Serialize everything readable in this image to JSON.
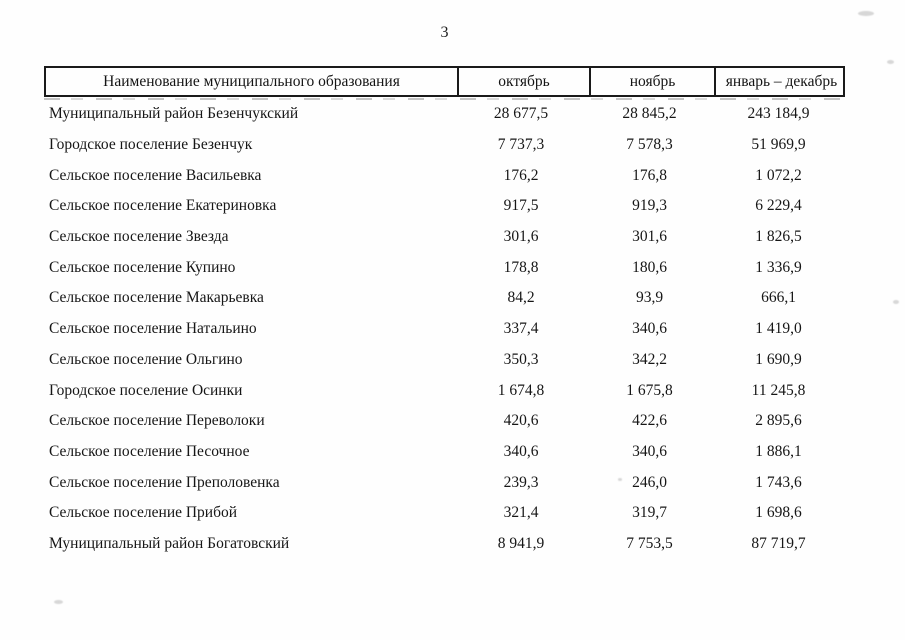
{
  "page": {
    "number": "3"
  },
  "table": {
    "headers": [
      "Наименование муниципального образования",
      "октябрь",
      "ноябрь",
      "январь – декабрь"
    ],
    "rows": [
      {
        "name": "Муниципальный район Безенчукский",
        "oct": "28 677,5",
        "nov": "28 845,2",
        "jan_dec": "243 184,9"
      },
      {
        "name": "Городское поселение Безенчук",
        "oct": "7 737,3",
        "nov": "7 578,3",
        "jan_dec": "51 969,9"
      },
      {
        "name": "Сельское поселение Васильевка",
        "oct": "176,2",
        "nov": "176,8",
        "jan_dec": "1 072,2"
      },
      {
        "name": "Сельское поселение Екатериновка",
        "oct": "917,5",
        "nov": "919,3",
        "jan_dec": "6 229,4"
      },
      {
        "name": "Сельское поселение Звезда",
        "oct": "301,6",
        "nov": "301,6",
        "jan_dec": "1 826,5"
      },
      {
        "name": "Сельское поселение Купино",
        "oct": "178,8",
        "nov": "180,6",
        "jan_dec": "1 336,9"
      },
      {
        "name": "Сельское поселение Макарьевка",
        "oct": "84,2",
        "nov": "93,9",
        "jan_dec": "666,1"
      },
      {
        "name": "Сельское поселение Натальино",
        "oct": "337,4",
        "nov": "340,6",
        "jan_dec": "1 419,0"
      },
      {
        "name": "Сельское поселение Ольгино",
        "oct": "350,3",
        "nov": "342,2",
        "jan_dec": "1 690,9"
      },
      {
        "name": "Городское поселение Осинки",
        "oct": "1 674,8",
        "nov": "1 675,8",
        "jan_dec": "11 245,8"
      },
      {
        "name": "Сельское поселение Переволоки",
        "oct": "420,6",
        "nov": "422,6",
        "jan_dec": "2 895,6"
      },
      {
        "name": "Сельское поселение Песочное",
        "oct": "340,6",
        "nov": "340,6",
        "jan_dec": "1 886,1"
      },
      {
        "name": "Сельское поселение Преполовенка",
        "oct": "239,3",
        "nov": "246,0",
        "jan_dec": "1 743,6"
      },
      {
        "name": "Сельское поселение Прибой",
        "oct": "321,4",
        "nov": "319,7",
        "jan_dec": "1 698,6"
      },
      {
        "name": "Муниципальный район Богатовский",
        "oct": "8 941,9",
        "nov": "7 753,5",
        "jan_dec": "87 719,7"
      }
    ]
  }
}
